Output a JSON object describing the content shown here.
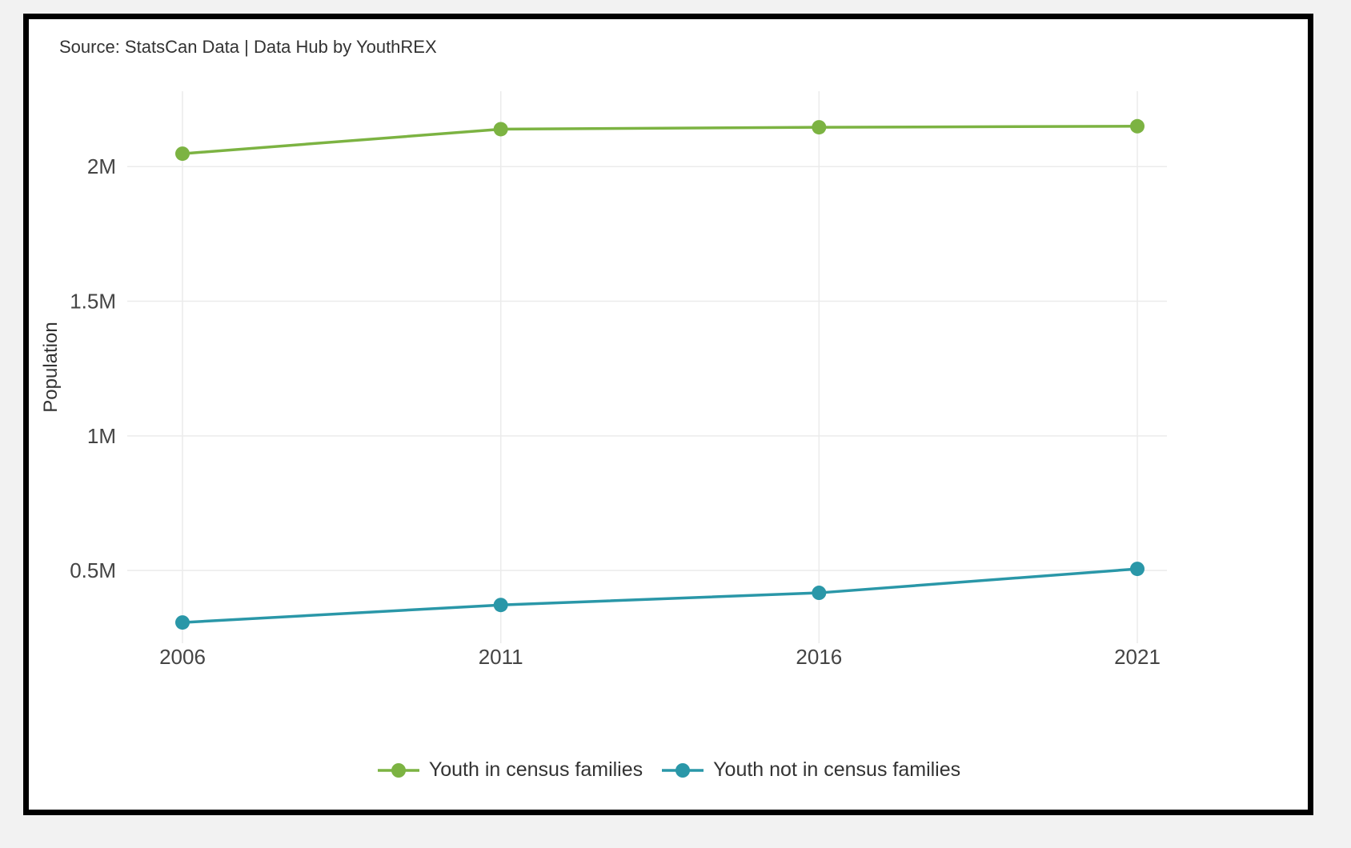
{
  "source_text": "Source: StatsCan Data | Data Hub by YouthREX",
  "chart_data": {
    "type": "line",
    "title": "",
    "xlabel": "",
    "ylabel": "Population",
    "x": [
      "2006",
      "2011",
      "2016",
      "2021"
    ],
    "ylim": [
      230000,
      2280000
    ],
    "yticks": [
      500000,
      1000000,
      1500000,
      2000000
    ],
    "ytick_labels": [
      "0.5M",
      "1M",
      "1.5M",
      "2M"
    ],
    "grid": true,
    "legend_position": "bottom",
    "series": [
      {
        "name": "Youth in census families",
        "color": "#7cb342",
        "values": [
          2048000,
          2139000,
          2146000,
          2150000
        ]
      },
      {
        "name": "Youth not in census families",
        "color": "#2a97a8",
        "values": [
          307000,
          372000,
          417000,
          506000
        ]
      }
    ]
  }
}
